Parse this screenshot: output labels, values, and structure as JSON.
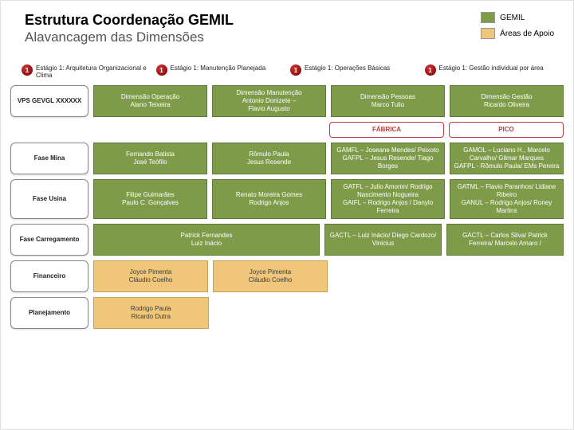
{
  "colors": {
    "green": "#7e9b4a",
    "tan": "#f0c77a",
    "white": "#ffffff",
    "section_border": "#b93d3d"
  },
  "header": {
    "title": "Estrutura Coordenação GEMIL",
    "subtitle": "Alavancagem das Dimensões"
  },
  "legend": {
    "item1": "GEMIL",
    "item2": "Áreas de Apoio"
  },
  "stages": {
    "badge": "1",
    "s1": "Estágio 1: Arquitetura Organizacional e Clima",
    "s2": "Estágio 1: Manutenção Planejada",
    "s3": "Estágio 1: Operações Básicas",
    "s4": "Estágio 1: Gestão individual por área"
  },
  "row1": {
    "c0": "VPS GEVGL XXXXXX",
    "c1": "Dimensão Operação\nAlano Teixeira",
    "c2": "Dimensão Manutenção\nAntonio Donizete –\nFlavio Augusto",
    "c3": "Dimensão Pessoas\nMarco Tulio",
    "c4": "Dimensão Gestão\nRicardo Oliveira"
  },
  "section": {
    "left": "FÁBRICA",
    "right": "PICO"
  },
  "row2": {
    "left": "Fase Mina",
    "c1": "Fernando Batista\nJosé Teófilo",
    "c2": "Rômulo Paula\nJesus Resende",
    "c3": "GAMFL – Joseane Mendes/ Peixoto\nGAFPL – Jesus Resende/ Tiago Borges",
    "c4": "GAMOL – Luciano H., Marcelo Carvalho/ Gilmar Marques\nGAFPL - Rômulo Paula/ EMs Pereira"
  },
  "row3": {
    "left": "Fase Usina",
    "c1": "Filipe Guimarães\nPaulo C. Gonçalves",
    "c2": "Renato Moreira Gomes\nRodrigo Anjos",
    "c3": "GATFL – Julio Amorim/ Rodrigo Nascimento Nogueira\nGAIFL – Rodrigo Anjos / Danylo Ferreira",
    "c4": "GATML – Flavio Paranhos/ Lidiane Ribeiro\nGANUL – Rodrigo Anjos/ Roney Martins"
  },
  "row4": {
    "left": "Fase Carregamento",
    "c1": "Patrick Fernandes\nLuiz Inácio",
    "c3": "GACTL – Luiz Inácio/ Diego Cardozo/ Vinicius",
    "c4": "GACTL – Carlos Silva/ Patrick Ferreira/ Marcelo Amaro /"
  },
  "row5": {
    "left": "Financeiro",
    "c1": "Joyce Pimenta\nCláudio Coelho",
    "c2": "Joyce Pimenta\nCláudio Coelho"
  },
  "row6": {
    "left": "Planejamento",
    "c1": "Rodrigo Paula\nRicardo Dutra"
  }
}
